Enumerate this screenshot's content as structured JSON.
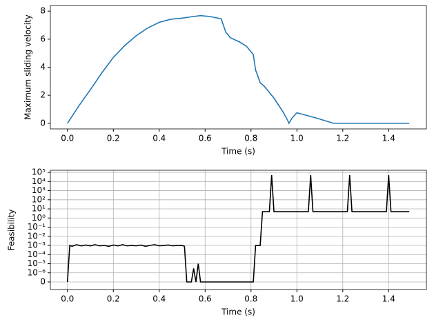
{
  "chart_data": [
    {
      "type": "line",
      "ylabel": "Maximum sliding velocity",
      "xlabel": "Time (s)",
      "xlim": [
        -0.0745,
        1.5645
      ],
      "ylim": [
        -0.4,
        8.4
      ],
      "xticks": [
        {
          "value": 0,
          "label": "0.0"
        },
        {
          "value": 0.2,
          "label": "0.2"
        },
        {
          "value": 0.4,
          "label": "0.4"
        },
        {
          "value": 0.6,
          "label": "0.6"
        },
        {
          "value": 0.8,
          "label": "0.8"
        },
        {
          "value": 1.0,
          "label": "1.0"
        },
        {
          "value": 1.2,
          "label": "1.2"
        },
        {
          "value": 1.4,
          "label": "1.4"
        }
      ],
      "yticks": [
        0,
        2,
        4,
        6,
        8
      ],
      "grid": false,
      "series": [
        {
          "color": "#1f77b4",
          "x": [
            0,
            0.05,
            0.1,
            0.15,
            0.2,
            0.25,
            0.3,
            0.35,
            0.4,
            0.45,
            0.5,
            0.55,
            0.58,
            0.62,
            0.67,
            0.69,
            0.71,
            0.75,
            0.78,
            0.81,
            0.82,
            0.84,
            0.86,
            0.9,
            0.94,
            0.96,
            0.965,
            0.98,
            1.0,
            1.08,
            1.16,
            1.3,
            1.49
          ],
          "values": [
            0,
            1.25,
            2.4,
            3.6,
            4.7,
            5.55,
            6.25,
            6.8,
            7.2,
            7.42,
            7.5,
            7.62,
            7.68,
            7.62,
            7.45,
            6.5,
            6.1,
            5.8,
            5.5,
            4.9,
            3.8,
            2.9,
            2.6,
            1.8,
            0.8,
            0.2,
            0,
            0.4,
            0.75,
            0.4,
            0,
            0,
            0
          ]
        }
      ]
    },
    {
      "type": "line",
      "ylabel": "Feasibility",
      "xlabel": "Time (s)",
      "yscale": "symlog",
      "linthresh": 1e-06,
      "xlim": [
        -0.0745,
        1.5645
      ],
      "ylim": [
        -8.3e-07,
        170000
      ],
      "xticks": [
        {
          "value": 0,
          "label": "0.0"
        },
        {
          "value": 0.2,
          "label": "0.2"
        },
        {
          "value": 0.4,
          "label": "0.4"
        },
        {
          "value": 0.6,
          "label": "0.6"
        },
        {
          "value": 0.8,
          "label": "0.8"
        },
        {
          "value": 1.0,
          "label": "1.0"
        },
        {
          "value": 1.2,
          "label": "1.2"
        },
        {
          "value": 1.4,
          "label": "1.4"
        }
      ],
      "yticks": [
        0,
        {
          "value": 1e-06,
          "label": "10⁻⁶"
        },
        {
          "value": 1e-05,
          "label": "10⁻⁵"
        },
        {
          "value": 0.0001,
          "label": "10⁻⁴"
        },
        {
          "value": 0.001,
          "label": "10⁻³"
        },
        {
          "value": 0.01,
          "label": "10⁻²"
        },
        {
          "value": 0.1,
          "label": "10⁻¹"
        },
        {
          "value": 1,
          "label": "10⁰"
        },
        {
          "value": 10,
          "label": "10¹"
        },
        {
          "value": 100,
          "label": "10²"
        },
        {
          "value": 1000,
          "label": "10³"
        },
        {
          "value": 10000,
          "label": "10⁴"
        },
        {
          "value": 100000,
          "label": "10⁵"
        }
      ],
      "grid": true,
      "series": [
        {
          "color": "#000000",
          "x": [
            0,
            0.01,
            0.02,
            0.04,
            0.06,
            0.08,
            0.1,
            0.12,
            0.14,
            0.16,
            0.18,
            0.2,
            0.22,
            0.24,
            0.26,
            0.28,
            0.3,
            0.32,
            0.34,
            0.36,
            0.38,
            0.4,
            0.42,
            0.44,
            0.46,
            0.48,
            0.5,
            0.51,
            0.52,
            0.54,
            0.55,
            0.56,
            0.57,
            0.58,
            0.81,
            0.82,
            0.84,
            0.85,
            0.88,
            0.89,
            0.9,
            1.05,
            1.06,
            1.07,
            1.22,
            1.23,
            1.24,
            1.39,
            1.4,
            1.41,
            1.49
          ],
          "values": [
            0,
            0.001,
            0.0008,
            0.0012,
            0.0009,
            0.0011,
            0.0009,
            0.0012,
            0.0009,
            0.001,
            0.0008,
            0.0011,
            0.0009,
            0.0012,
            0.0009,
            0.001,
            0.0009,
            0.0011,
            0.0008,
            0.001,
            0.0012,
            0.0009,
            0.001,
            0.0011,
            0.0009,
            0.001,
            0.001,
            0.0008,
            0,
            0,
            3e-06,
            0,
            1e-05,
            0,
            0,
            0.001,
            0.001,
            5,
            5,
            50000,
            5,
            5,
            50000,
            5,
            5,
            50000,
            5,
            5,
            50000,
            5,
            5
          ]
        }
      ]
    }
  ]
}
